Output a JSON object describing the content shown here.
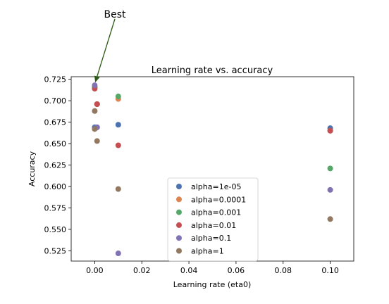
{
  "chart_data": {
    "type": "scatter",
    "title": "Learning rate vs. accuracy",
    "xlabel": "Learning rate (eta0)",
    "ylabel": "Accuracy",
    "xlim": [
      -0.01,
      0.11
    ],
    "ylim": [
      0.513,
      0.728
    ],
    "xticks": [
      0.0,
      0.02,
      0.04,
      0.06,
      0.08,
      0.1
    ],
    "xtick_labels": [
      "0.00",
      "0.02",
      "0.04",
      "0.06",
      "0.08",
      "0.10"
    ],
    "yticks": [
      0.525,
      0.55,
      0.575,
      0.6,
      0.625,
      0.65,
      0.675,
      0.7,
      0.725
    ],
    "ytick_labels": [
      "0.525",
      "0.550",
      "0.575",
      "0.600",
      "0.625",
      "0.650",
      "0.675",
      "0.700",
      "0.725"
    ],
    "grid": false,
    "legend_position": "lower-center",
    "series": [
      {
        "name": "alpha=1e-05",
        "color": "#4c72b0",
        "points": [
          [
            0.0,
            0.669
          ],
          [
            0.001,
            0.669
          ],
          [
            0.01,
            0.672
          ],
          [
            0.1,
            0.668
          ]
        ]
      },
      {
        "name": "alpha=0.0001",
        "color": "#dd8452",
        "points": [
          [
            0.0,
            0.716
          ],
          [
            0.001,
            0.696
          ],
          [
            0.01,
            0.702
          ],
          [
            0.1,
            0.665
          ]
        ]
      },
      {
        "name": "alpha=0.001",
        "color": "#55a868",
        "points": [
          [
            0.0,
            0.716
          ],
          [
            0.001,
            0.696
          ],
          [
            0.01,
            0.705
          ],
          [
            0.1,
            0.621
          ]
        ]
      },
      {
        "name": "alpha=0.01",
        "color": "#c44e52",
        "points": [
          [
            0.0,
            0.714
          ],
          [
            0.001,
            0.696
          ],
          [
            0.01,
            0.648
          ],
          [
            0.1,
            0.665
          ]
        ]
      },
      {
        "name": "alpha=0.1",
        "color": "#8172b3",
        "points": [
          [
            0.0,
            0.718
          ],
          [
            0.001,
            0.669
          ],
          [
            0.01,
            0.522
          ],
          [
            0.1,
            0.596
          ]
        ]
      },
      {
        "name": "alpha=1",
        "color": "#937860",
        "points": [
          [
            0.0,
            0.688
          ],
          [
            0.0,
            0.667
          ],
          [
            0.001,
            0.653
          ],
          [
            0.01,
            0.597
          ],
          [
            0.1,
            0.562
          ]
        ]
      }
    ],
    "annotations": [
      {
        "text": "Best",
        "x": 0.0,
        "y": 0.718,
        "arrow_color": "#2d5a16"
      }
    ]
  }
}
